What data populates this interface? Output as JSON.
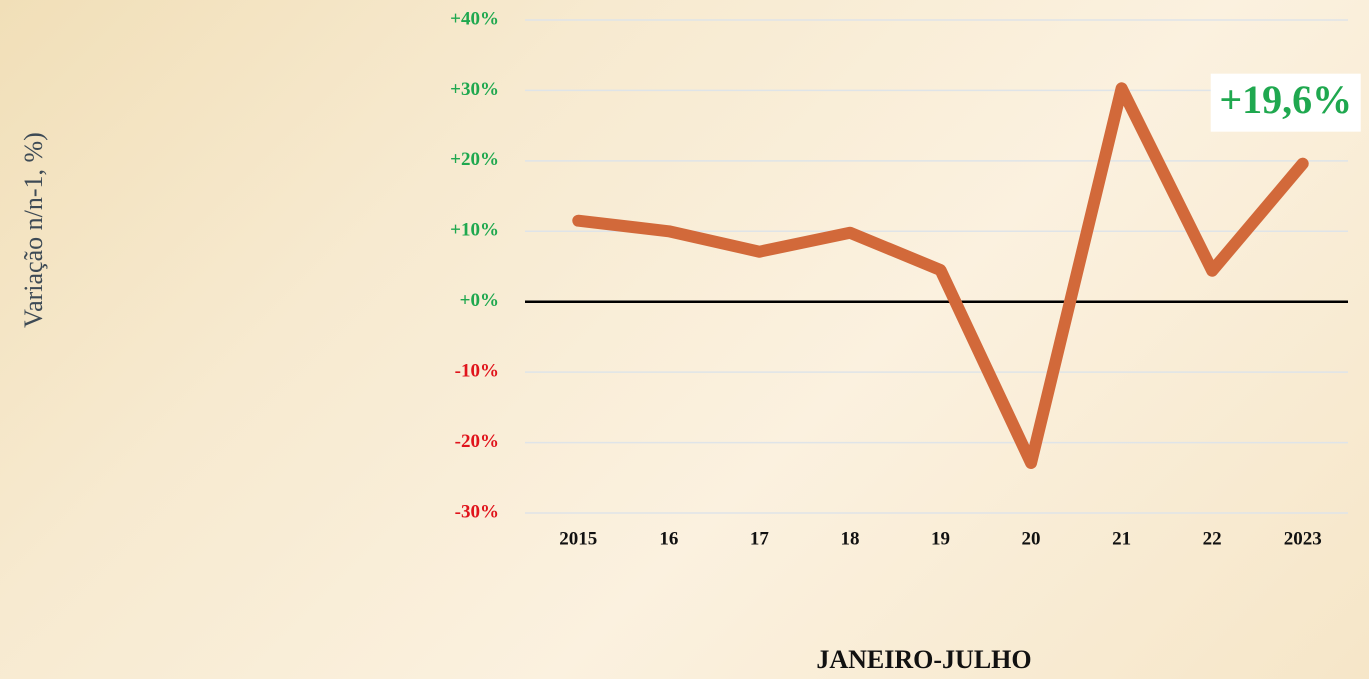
{
  "chart_data": {
    "type": "line",
    "y_label": "Variação n/n-1, %)",
    "x_label": "JANEIRO-JULHO",
    "categories": [
      "2015",
      "16",
      "17",
      "18",
      "19",
      "20",
      "21",
      "22",
      "2023"
    ],
    "values": [
      11.5,
      10,
      7.1,
      9.8,
      4.5,
      -22.9,
      30.3,
      4.4,
      19.6
    ],
    "value_labels": [
      null,
      null,
      null,
      null,
      null,
      null,
      null,
      null,
      "+19,6%"
    ],
    "color": "#d2693a",
    "ylim": [
      -30,
      40
    ],
    "yticks": [
      {
        "value": -30,
        "label": "-30%"
      },
      {
        "value": -20,
        "label": "-20%"
      },
      {
        "value": -10,
        "label": "-10%"
      },
      {
        "value": 0,
        "label": "+0%"
      },
      {
        "value": 10,
        "label": "+10%"
      },
      {
        "value": 20,
        "label": "+20%"
      },
      {
        "value": 30,
        "label": "+30%"
      },
      {
        "value": 40,
        "label": "+40%"
      }
    ],
    "grid": true,
    "positive_color": "#1fa84f",
    "negative_color": "#e0141c"
  }
}
